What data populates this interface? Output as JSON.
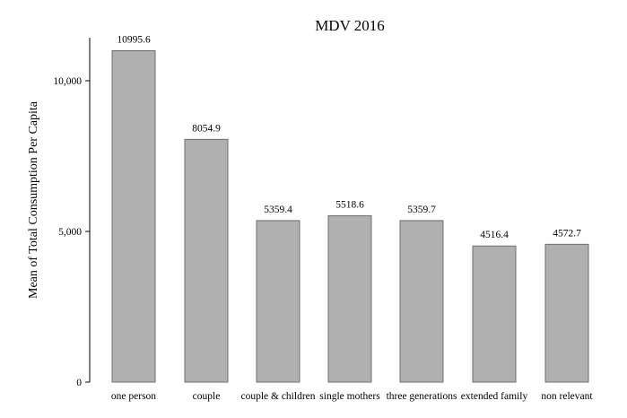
{
  "chart_data": {
    "type": "bar",
    "title": "MDV 2016",
    "xlabel": "",
    "ylabel": "Mean of Total Consumption Per Capita",
    "ylim": [
      0,
      11000
    ],
    "yticks": [
      0,
      5000,
      10000
    ],
    "ytick_labels": [
      "0",
      "5,000",
      "10,000"
    ],
    "grid": false,
    "legend": "none",
    "bar_color": "#b0b0b0",
    "bar_edge_color": "#6e6e6e",
    "categories": [
      "one person",
      "couple",
      "couple & children",
      "single mothers",
      "three generations",
      "extended family",
      "non relevant"
    ],
    "values": [
      10995.6,
      8054.9,
      5359.4,
      5518.6,
      5359.7,
      4516.4,
      4572.7
    ],
    "value_labels": [
      "10995.6",
      "8054.9",
      "5359.4",
      "5518.6",
      "5359.7",
      "4516.4",
      "4572.7"
    ]
  }
}
